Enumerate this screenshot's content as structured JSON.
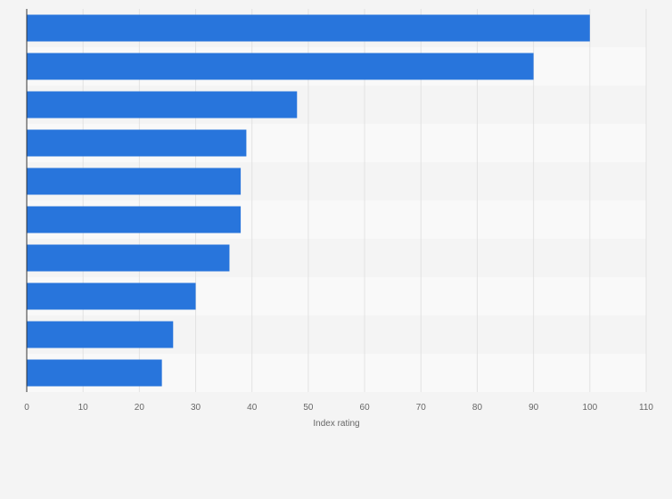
{
  "chart_data": {
    "type": "bar",
    "orientation": "horizontal",
    "title": "",
    "xlabel": "Index rating",
    "ylabel": "",
    "xlim": [
      0,
      110
    ],
    "xticks": [
      "0",
      "10",
      "20",
      "30",
      "40",
      "50",
      "60",
      "70",
      "80",
      "90",
      "100",
      "110"
    ],
    "categories": [
      "",
      "",
      "",
      "",
      "",
      "",
      "",
      "",
      "",
      ""
    ],
    "values": [
      100,
      90,
      48,
      39,
      38,
      38,
      36,
      30,
      26,
      24
    ],
    "bar_color": "#2875dc",
    "grid": true
  }
}
